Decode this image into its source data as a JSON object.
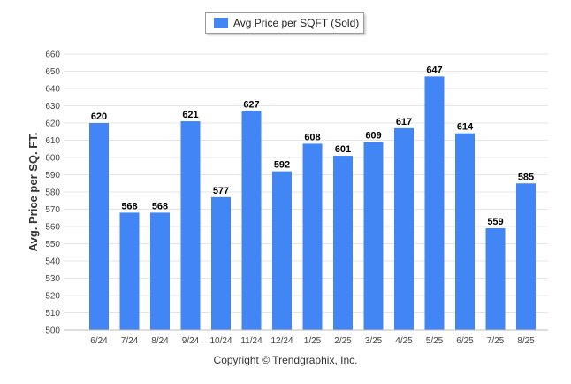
{
  "legend": {
    "label": "Avg Price per SQFT (Sold)"
  },
  "footer": {
    "copyright": "Copyright © Trendgraphix, Inc."
  },
  "colors": {
    "bar": "#4285f4",
    "grid": "#e6e6e6",
    "axis_text": "#444444",
    "label_text": "#000000"
  },
  "chart_data": {
    "type": "bar",
    "ylabel": "Avg. Price per SQ. FT.",
    "xlabel": "",
    "ylim": [
      500,
      660
    ],
    "ytick_step": 10,
    "grid": true,
    "legend_position": "top-center",
    "categories": [
      "6/24",
      "7/24",
      "8/24",
      "9/24",
      "10/24",
      "11/24",
      "12/24",
      "1/25",
      "2/25",
      "3/25",
      "4/25",
      "5/25",
      "6/25",
      "7/25",
      "8/25"
    ],
    "series": [
      {
        "name": "Avg Price per SQFT (Sold)",
        "values": [
          620,
          568,
          568,
          621,
          577,
          627,
          592,
          608,
          601,
          609,
          617,
          647,
          614,
          559,
          585
        ]
      }
    ]
  }
}
